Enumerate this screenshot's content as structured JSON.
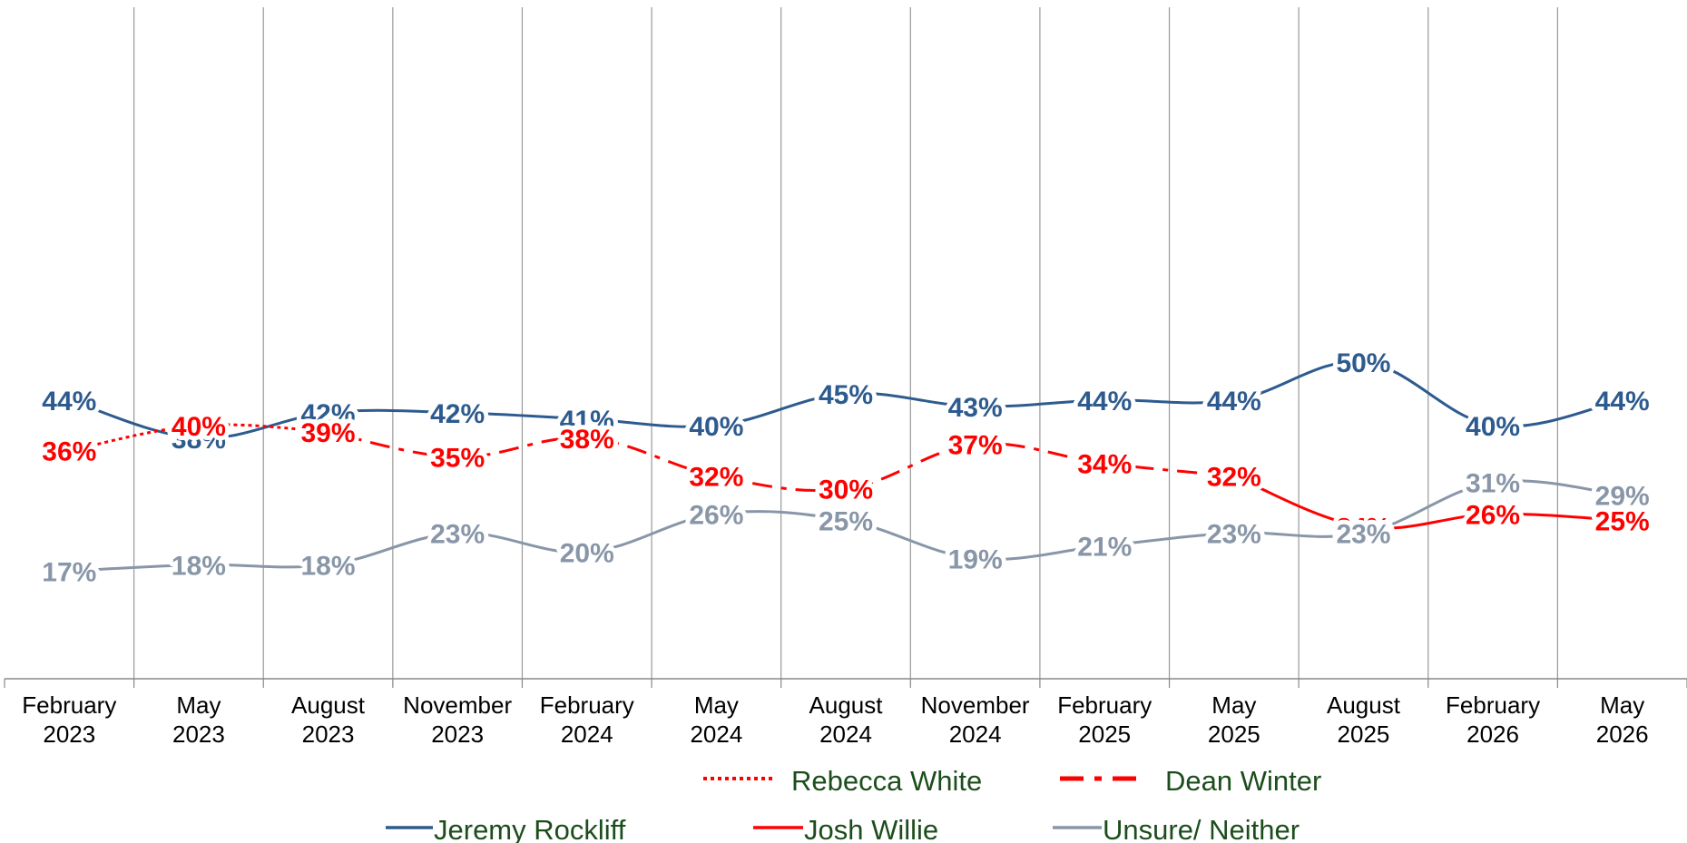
{
  "chart_data": {
    "type": "line",
    "categories": [
      [
        "February",
        "2023"
      ],
      [
        "May",
        "2023"
      ],
      [
        "August",
        "2023"
      ],
      [
        "November",
        "2023"
      ],
      [
        "February",
        "2024"
      ],
      [
        "May",
        "2024"
      ],
      [
        "August",
        "2024"
      ],
      [
        "November",
        "2024"
      ],
      [
        "February",
        "2025"
      ],
      [
        "May",
        "2025"
      ],
      [
        "August",
        "2025"
      ],
      [
        "February",
        "2026"
      ],
      [
        "May",
        "2026"
      ]
    ],
    "ylim": [
      0,
      100
    ],
    "grid": "vertical",
    "legend_position": "bottom",
    "series": [
      {
        "name": "Jeremy Rockliff",
        "color": "#2e5b8f",
        "dash": "solid",
        "values": [
          44,
          38,
          42,
          42,
          41,
          40,
          45,
          43,
          44,
          44,
          50,
          40,
          44
        ],
        "labels": [
          "44%",
          "38%",
          "42%",
          "42%",
          "41%",
          "40%",
          "45%",
          "43%",
          "44%",
          "44%",
          "50%",
          "40%",
          "44%"
        ]
      },
      {
        "name": "Rebecca White",
        "color": "#ff0000",
        "dash": "dotted",
        "values": [
          36,
          40,
          39,
          null,
          null,
          null,
          null,
          null,
          null,
          null,
          null,
          null,
          null
        ],
        "labels": [
          "36%",
          "40%",
          "39%",
          "",
          "",
          "",
          "",
          "",
          "",
          "",
          "",
          "",
          ""
        ]
      },
      {
        "name": "Dean Winter",
        "color": "#ff0000",
        "dash": "dashdot",
        "values": [
          null,
          null,
          39,
          35,
          38,
          32,
          30,
          37,
          34,
          32,
          null,
          null,
          null
        ],
        "labels": [
          "",
          "",
          "",
          "35%",
          "38%",
          "32%",
          "30%",
          "37%",
          "34%",
          "32%",
          "",
          "",
          ""
        ]
      },
      {
        "name": "Josh Willie",
        "color": "#ff0000",
        "dash": "solid",
        "values": [
          null,
          null,
          null,
          null,
          null,
          null,
          null,
          null,
          null,
          32,
          24,
          26,
          25
        ],
        "labels": [
          "",
          "",
          "",
          "",
          "",
          "",
          "",
          "",
          "",
          "",
          "24%",
          "26%",
          "25%"
        ]
      },
      {
        "name": "Unsure/ Neither",
        "color": "#8896a8",
        "dash": "solid",
        "values": [
          17,
          18,
          18,
          23,
          20,
          26,
          25,
          19,
          21,
          23,
          23,
          31,
          29
        ],
        "labels": [
          "17%",
          "18%",
          "18%",
          "23%",
          "20%",
          "26%",
          "25%",
          "19%",
          "21%",
          "23%",
          "23%",
          "31%",
          "29%"
        ]
      }
    ],
    "legend": {
      "row1": [
        "Rebecca White",
        "Dean Winter"
      ],
      "row2": [
        "Jeremy Rockliff",
        "Josh Willie",
        "Unsure/ Neither"
      ]
    }
  }
}
